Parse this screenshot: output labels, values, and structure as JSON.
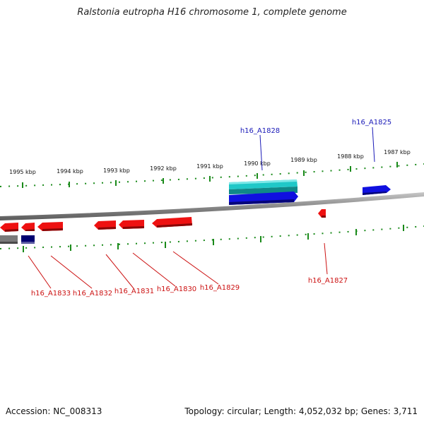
{
  "title": "Ralstonia eutropha H16 chromosome 1, complete genome",
  "footer": {
    "accession": "Accession: NC_008313",
    "topology": "Topology: circular; Length: 4,052,032 bp; Genes: 3,711"
  },
  "ticks": [
    {
      "label": "1995 kbp"
    },
    {
      "label": "1994 kbp"
    },
    {
      "label": "1993 kbp"
    },
    {
      "label": "1992 kbp"
    },
    {
      "label": "1991 kbp"
    },
    {
      "label": "1990 kbp"
    },
    {
      "label": "1989 kbp"
    },
    {
      "label": "1988 kbp"
    },
    {
      "label": "1987 kbp"
    }
  ],
  "gene_labels": [
    {
      "text": "h16_A1828"
    },
    {
      "text": "h16_A1825"
    },
    {
      "text": "h16_A1833"
    },
    {
      "text": "h16_A1832"
    },
    {
      "text": "h16_A1831"
    },
    {
      "text": "h16_A1830"
    },
    {
      "text": "h16_A1829"
    },
    {
      "text": "h16_A1827"
    }
  ],
  "colors": {
    "forward_strand": "#1010e0",
    "forward_dark": "#000070",
    "reverse_strand": "#ee1111",
    "rna": "#20c8c8",
    "other": "#7a7a7a",
    "backbone": "#808080",
    "tick": "#1a8a1a",
    "forward_label": "#1a1ab8",
    "reverse_label": "#cc1111"
  }
}
